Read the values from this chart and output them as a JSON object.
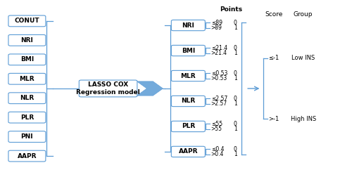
{
  "left_boxes": [
    "CONUT",
    "NRI",
    "BMI",
    "MLR",
    "NLR",
    "PLR",
    "PNI",
    "AAPR"
  ],
  "middle_boxes": [
    "NRI",
    "BMI",
    "MLR",
    "NLR",
    "PLR",
    "AAPR"
  ],
  "center_label": [
    "LASSO COX",
    "Regression model"
  ],
  "points_label": "Points",
  "thresholds": [
    [
      "≤89",
      "0",
      ">89",
      "1"
    ],
    [
      "≤21.4",
      "0",
      ">21.4",
      "1"
    ],
    [
      "≤0.53",
      "0",
      ">0.53",
      "1"
    ],
    [
      "≤2.57",
      "0",
      ">2.57",
      "1"
    ],
    [
      "≤55",
      "0",
      ">55",
      "1"
    ],
    [
      "≤0.4",
      "0",
      ">0.4",
      "1"
    ]
  ],
  "score_labels": [
    "≤-1",
    ">-1"
  ],
  "group_labels": [
    "Low INS",
    "High INS"
  ],
  "score_col_title": "Score",
  "group_col_title": "Group",
  "box_color": "#5b9bd5",
  "arrow_color": "#5b9bd5",
  "bracket_color": "#5b9bd5",
  "text_color": "#000000",
  "bg_color": "#ffffff",
  "figsize": [
    5.0,
    2.52
  ],
  "dpi": 100
}
